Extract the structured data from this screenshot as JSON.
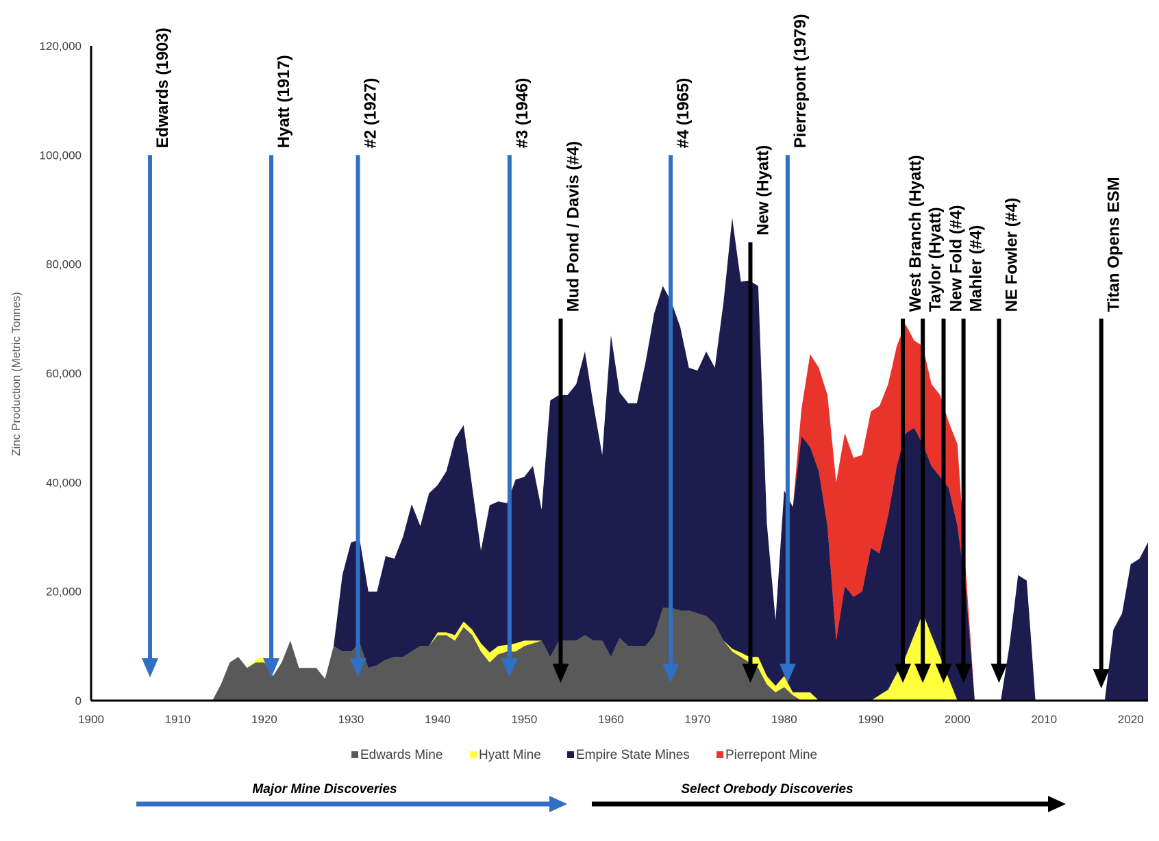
{
  "chart_data": {
    "type": "area",
    "stacked": true,
    "ylabel": "Zinc Production (Metric Tonnes)",
    "xlim": [
      1900,
      2022
    ],
    "ylim": [
      0,
      120000
    ],
    "xticks": [
      1900,
      1910,
      1920,
      1930,
      1940,
      1950,
      1960,
      1970,
      1980,
      1990,
      2000,
      2010,
      2020
    ],
    "xtick_labels": [
      "1900",
      "1910",
      "1920",
      "1930",
      "1940",
      "1950",
      "1960",
      "1970",
      "1980",
      "1990",
      "2000",
      "2010",
      "2020"
    ],
    "yticks": [
      0,
      20000,
      40000,
      60000,
      80000,
      100000,
      120000
    ],
    "ytick_labels": [
      "0",
      "20,000",
      "40,000",
      "60,000",
      "80,000",
      "100,000",
      "120,000"
    ],
    "grid": false,
    "legend_position": "bottom",
    "series": [
      {
        "name": "Edwards Mine",
        "color": "#595959",
        "points": [
          [
            1914,
            0
          ],
          [
            1915,
            3000
          ],
          [
            1916,
            7000
          ],
          [
            1917,
            8000
          ],
          [
            1918,
            6000
          ],
          [
            1919,
            7000
          ],
          [
            1920,
            7000
          ],
          [
            1921,
            4500
          ],
          [
            1922,
            7000
          ],
          [
            1923,
            11000
          ],
          [
            1924,
            6000
          ],
          [
            1925,
            6000
          ],
          [
            1926,
            6000
          ],
          [
            1927,
            4000
          ],
          [
            1928,
            10000
          ],
          [
            1929,
            9000
          ],
          [
            1930,
            9000
          ],
          [
            1931,
            10500
          ],
          [
            1932,
            6000
          ],
          [
            1933,
            6500
          ],
          [
            1934,
            7500
          ],
          [
            1935,
            8000
          ],
          [
            1936,
            8000
          ],
          [
            1937,
            9000
          ],
          [
            1938,
            10000
          ],
          [
            1939,
            10000
          ],
          [
            1940,
            12000
          ],
          [
            1941,
            12000
          ],
          [
            1942,
            11000
          ],
          [
            1943,
            13500
          ],
          [
            1944,
            12000
          ],
          [
            1945,
            9000
          ],
          [
            1946,
            7000
          ],
          [
            1947,
            8500
          ],
          [
            1948,
            9000
          ],
          [
            1949,
            9000
          ],
          [
            1950,
            10000
          ],
          [
            1951,
            10500
          ],
          [
            1952,
            11000
          ],
          [
            1953,
            8000
          ],
          [
            1954,
            11000
          ],
          [
            1955,
            11000
          ],
          [
            1956,
            11000
          ],
          [
            1957,
            12000
          ],
          [
            1958,
            11000
          ],
          [
            1959,
            11000
          ],
          [
            1960,
            8000
          ],
          [
            1961,
            11500
          ],
          [
            1962,
            10000
          ],
          [
            1963,
            10000
          ],
          [
            1964,
            10000
          ],
          [
            1965,
            12000
          ],
          [
            1966,
            17000
          ],
          [
            1967,
            17000
          ],
          [
            1968,
            16500
          ],
          [
            1969,
            16500
          ],
          [
            1970,
            16000
          ],
          [
            1971,
            15500
          ],
          [
            1972,
            14000
          ],
          [
            1973,
            11000
          ],
          [
            1974,
            9000
          ],
          [
            1975,
            8000
          ],
          [
            1976,
            7000
          ],
          [
            1977,
            6000
          ],
          [
            1978,
            3000
          ],
          [
            1979,
            1500
          ],
          [
            1980,
            2500
          ],
          [
            1981,
            1000
          ],
          [
            1982,
            0
          ]
        ]
      },
      {
        "name": "Hyatt Mine",
        "color": "#ffff3c",
        "points": [
          [
            1914,
            0
          ],
          [
            1915,
            0
          ],
          [
            1916,
            0
          ],
          [
            1917,
            0
          ],
          [
            1918,
            0
          ],
          [
            1919,
            500
          ],
          [
            1920,
            1000
          ],
          [
            1921,
            0
          ],
          [
            1922,
            0
          ],
          [
            1923,
            0
          ],
          [
            1928,
            0
          ],
          [
            1939,
            0
          ],
          [
            1940,
            500
          ],
          [
            1941,
            500
          ],
          [
            1942,
            1000
          ],
          [
            1943,
            1000
          ],
          [
            1944,
            1000
          ],
          [
            1945,
            1500
          ],
          [
            1946,
            1800
          ],
          [
            1947,
            1500
          ],
          [
            1948,
            1200
          ],
          [
            1949,
            1500
          ],
          [
            1950,
            1000
          ],
          [
            1951,
            500
          ],
          [
            1952,
            0
          ],
          [
            1973,
            0
          ],
          [
            1974,
            500
          ],
          [
            1975,
            800
          ],
          [
            1976,
            1000
          ],
          [
            1977,
            2000
          ],
          [
            1978,
            1500
          ],
          [
            1979,
            1200
          ],
          [
            1980,
            2000
          ],
          [
            1981,
            500
          ],
          [
            1982,
            1500
          ],
          [
            1983,
            1500
          ],
          [
            1984,
            0
          ],
          [
            1990,
            0
          ],
          [
            1991,
            1000
          ],
          [
            1992,
            2000
          ],
          [
            1993,
            5000
          ],
          [
            1994,
            8000
          ],
          [
            1995,
            12000
          ],
          [
            1996,
            16000
          ],
          [
            1997,
            12000
          ],
          [
            1998,
            8000
          ],
          [
            1999,
            4000
          ],
          [
            2000,
            0
          ]
        ]
      },
      {
        "name": "Empire State Mines",
        "color": "#1c1d4e",
        "points": [
          [
            1928,
            0
          ],
          [
            1929,
            14000
          ],
          [
            1930,
            20000
          ],
          [
            1931,
            19000
          ],
          [
            1932,
            14000
          ],
          [
            1933,
            13500
          ],
          [
            1934,
            19000
          ],
          [
            1935,
            18000
          ],
          [
            1936,
            22000
          ],
          [
            1937,
            27000
          ],
          [
            1938,
            22000
          ],
          [
            1939,
            28000
          ],
          [
            1940,
            27000
          ],
          [
            1941,
            29500
          ],
          [
            1942,
            36000
          ],
          [
            1943,
            36000
          ],
          [
            1944,
            26000
          ],
          [
            1945,
            17000
          ],
          [
            1946,
            27000
          ],
          [
            1947,
            26500
          ],
          [
            1948,
            26000
          ],
          [
            1949,
            30000
          ],
          [
            1950,
            30000
          ],
          [
            1951,
            32000
          ],
          [
            1952,
            24000
          ],
          [
            1953,
            47000
          ],
          [
            1954,
            45000
          ],
          [
            1955,
            45000
          ],
          [
            1956,
            47000
          ],
          [
            1957,
            52000
          ],
          [
            1958,
            43000
          ],
          [
            1959,
            34000
          ],
          [
            1960,
            59000
          ],
          [
            1961,
            45000
          ],
          [
            1962,
            44500
          ],
          [
            1963,
            44500
          ],
          [
            1964,
            52000
          ],
          [
            1965,
            59000
          ],
          [
            1966,
            59000
          ],
          [
            1967,
            56000
          ],
          [
            1968,
            52000
          ],
          [
            1969,
            44500
          ],
          [
            1970,
            44500
          ],
          [
            1971,
            48500
          ],
          [
            1972,
            47000
          ],
          [
            1973,
            62000
          ],
          [
            1974,
            79000
          ],
          [
            1975,
            68000
          ],
          [
            1976,
            69000
          ],
          [
            1977,
            68000
          ],
          [
            1978,
            28000
          ],
          [
            1979,
            12000
          ],
          [
            1980,
            34000
          ],
          [
            1981,
            34000
          ],
          [
            1982,
            47000
          ],
          [
            1983,
            45000
          ],
          [
            1984,
            42000
          ],
          [
            1985,
            32000
          ],
          [
            1986,
            11000
          ],
          [
            1987,
            21000
          ],
          [
            1988,
            19000
          ],
          [
            1989,
            20000
          ],
          [
            1990,
            28000
          ],
          [
            1991,
            26000
          ],
          [
            1992,
            32000
          ],
          [
            1993,
            38000
          ],
          [
            1994,
            41000
          ],
          [
            1995,
            38000
          ],
          [
            1996,
            31000
          ],
          [
            1997,
            31000
          ],
          [
            1998,
            33000
          ],
          [
            1999,
            35000
          ],
          [
            2000,
            32000
          ],
          [
            2001,
            20000
          ],
          [
            2002,
            0
          ],
          [
            2005,
            0
          ],
          [
            2006,
            10000
          ],
          [
            2007,
            23000
          ],
          [
            2008,
            22000
          ],
          [
            2009,
            0
          ],
          [
            2017,
            0
          ],
          [
            2018,
            13000
          ],
          [
            2019,
            16000
          ],
          [
            2020,
            25000
          ],
          [
            2021,
            26000
          ],
          [
            2022,
            29000
          ]
        ]
      },
      {
        "name": "Pierrepont Mine",
        "color": "#e8342a",
        "points": [
          [
            1980,
            0
          ],
          [
            1981,
            0
          ],
          [
            1982,
            5000
          ],
          [
            1983,
            17000
          ],
          [
            1984,
            19000
          ],
          [
            1985,
            24000
          ],
          [
            1986,
            29000
          ],
          [
            1987,
            28000
          ],
          [
            1988,
            25500
          ],
          [
            1989,
            25000
          ],
          [
            1990,
            25000
          ],
          [
            1991,
            27000
          ],
          [
            1992,
            24000
          ],
          [
            1993,
            22000
          ],
          [
            1994,
            20000
          ],
          [
            1995,
            16000
          ],
          [
            1996,
            18000
          ],
          [
            1997,
            15000
          ],
          [
            1998,
            15000
          ],
          [
            1999,
            12000
          ],
          [
            2000,
            15000
          ],
          [
            2001,
            3000
          ],
          [
            2002,
            0
          ]
        ]
      }
    ],
    "annotations": [
      {
        "label": "Edwards (1903)",
        "x": 1906.8,
        "group": "major",
        "top": 100000,
        "bottom": 5000,
        "color": "#2f6fc4"
      },
      {
        "label": "Hyatt (1917)",
        "x": 1920.8,
        "group": "major",
        "top": 100000,
        "bottom": 5000,
        "color": "#2f6fc4"
      },
      {
        "label": "#2 (1927)",
        "x": 1930.8,
        "group": "major",
        "top": 100000,
        "bottom": 5000,
        "color": "#2f6fc4"
      },
      {
        "label": "#3 (1946)",
        "x": 1948.3,
        "group": "major",
        "top": 100000,
        "bottom": 5000,
        "color": "#2f6fc4"
      },
      {
        "label": "Mud Pond / Davis (#4)",
        "x": 1954.2,
        "group": "orebody",
        "top": 70000,
        "bottom": 4000,
        "color": "#000000"
      },
      {
        "label": "#4 (1965)",
        "x": 1966.9,
        "group": "major",
        "top": 100000,
        "bottom": 4000,
        "color": "#2f6fc4"
      },
      {
        "label": "New (Hyatt)",
        "x": 1976.1,
        "group": "orebody",
        "top": 84000,
        "bottom": 4000,
        "color": "#000000"
      },
      {
        "label": "Pierrepont (1979)",
        "x": 1980.4,
        "group": "major",
        "top": 100000,
        "bottom": 4000,
        "color": "#2f6fc4"
      },
      {
        "label": "West Branch (Hyatt)",
        "x": 1993.7,
        "group": "orebody",
        "top": 70000,
        "bottom": 4000,
        "color": "#000000"
      },
      {
        "label": "Taylor (Hyatt)",
        "x": 1996.0,
        "group": "orebody",
        "top": 70000,
        "bottom": 4000,
        "color": "#000000"
      },
      {
        "label": "New Fold (#4)",
        "x": 1998.4,
        "group": "orebody",
        "top": 70000,
        "bottom": 4000,
        "color": "#000000"
      },
      {
        "label": "Mahler (#4)",
        "x": 2000.7,
        "group": "orebody",
        "top": 70000,
        "bottom": 4000,
        "color": "#000000"
      },
      {
        "label": "NE Fowler (#4)",
        "x": 2004.8,
        "group": "orebody",
        "top": 70000,
        "bottom": 4000,
        "color": "#000000"
      },
      {
        "label": "Titan Opens ESM",
        "x": 2016.6,
        "group": "orebody",
        "top": 70000,
        "bottom": 3000,
        "color": "#000000"
      }
    ],
    "section_arrows": [
      {
        "label": "Major Mine Discoveries",
        "color": "#2f6fc4"
      },
      {
        "label": "Select Orebody Discoveries",
        "color": "#000000"
      }
    ]
  }
}
